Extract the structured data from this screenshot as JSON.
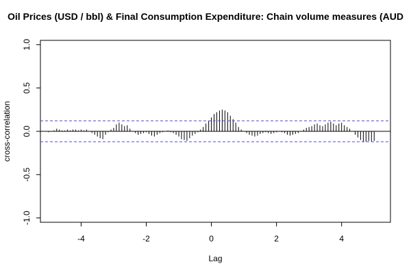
{
  "chart_data": {
    "type": "bar",
    "title": "Oil Prices (USD / bbl) & Final Consumption Expenditure: Chain volume measures (AUD",
    "xlabel": "Lag",
    "ylabel": "cross-correlation",
    "xlim": [
      -5.25,
      5.5
    ],
    "ylim": [
      -1.05,
      1.05
    ],
    "x_ticks": [
      -4,
      -2,
      0,
      2,
      4
    ],
    "y_ticks": [
      -1.0,
      -0.5,
      0.0,
      0.5,
      1.0
    ],
    "x_tick_labels": [
      "-4",
      "-2",
      "0",
      "2",
      "4"
    ],
    "y_tick_labels": [
      "-1.0",
      "-0.5",
      "0.0",
      "0.5",
      "1.0"
    ],
    "confidence_bound": 0.12,
    "colors": {
      "bars": "#000000",
      "confidence_lines": "#4a4adf",
      "zero_line": "#000000"
    },
    "lags": [
      -5.0,
      -4.917,
      -4.833,
      -4.75,
      -4.667,
      -4.583,
      -4.5,
      -4.417,
      -4.333,
      -4.25,
      -4.167,
      -4.083,
      -4.0,
      -3.917,
      -3.833,
      -3.75,
      -3.667,
      -3.583,
      -3.5,
      -3.417,
      -3.333,
      -3.25,
      -3.167,
      -3.083,
      -3.0,
      -2.917,
      -2.833,
      -2.75,
      -2.667,
      -2.583,
      -2.5,
      -2.417,
      -2.333,
      -2.25,
      -2.167,
      -2.083,
      -2.0,
      -1.917,
      -1.833,
      -1.75,
      -1.667,
      -1.583,
      -1.5,
      -1.417,
      -1.333,
      -1.25,
      -1.167,
      -1.083,
      -1.0,
      -0.917,
      -0.833,
      -0.75,
      -0.667,
      -0.583,
      -0.5,
      -0.417,
      -0.333,
      -0.25,
      -0.167,
      -0.083,
      0.0,
      0.083,
      0.167,
      0.25,
      0.333,
      0.417,
      0.5,
      0.583,
      0.667,
      0.75,
      0.833,
      0.917,
      1.0,
      1.083,
      1.167,
      1.25,
      1.333,
      1.417,
      1.5,
      1.583,
      1.667,
      1.75,
      1.833,
      1.917,
      2.0,
      2.083,
      2.167,
      2.25,
      2.333,
      2.417,
      2.5,
      2.583,
      2.667,
      2.75,
      2.833,
      2.917,
      3.0,
      3.083,
      3.167,
      3.25,
      3.333,
      3.417,
      3.5,
      3.583,
      3.667,
      3.75,
      3.833,
      3.917,
      4.0,
      4.083,
      4.167,
      4.25,
      4.333,
      4.417,
      4.5,
      4.583,
      4.667,
      4.75,
      4.833,
      4.917,
      5.0
    ],
    "values": [
      -0.01,
      0.0,
      0.01,
      0.03,
      0.02,
      0.01,
      0.01,
      0.02,
      0.01,
      0.02,
      0.02,
      0.01,
      0.02,
      0.01,
      0.02,
      0.0,
      -0.02,
      -0.04,
      -0.06,
      -0.08,
      -0.09,
      -0.04,
      -0.01,
      0.02,
      0.04,
      0.08,
      0.1,
      0.08,
      0.06,
      0.07,
      0.03,
      0.0,
      -0.02,
      -0.04,
      -0.03,
      -0.02,
      -0.01,
      -0.03,
      -0.05,
      -0.06,
      -0.04,
      -0.02,
      -0.01,
      0.0,
      0.01,
      -0.01,
      -0.02,
      -0.04,
      -0.06,
      -0.09,
      -0.1,
      -0.11,
      -0.08,
      -0.05,
      -0.03,
      -0.01,
      0.02,
      0.05,
      0.09,
      0.12,
      0.16,
      0.2,
      0.22,
      0.24,
      0.25,
      0.24,
      0.22,
      0.18,
      0.14,
      0.1,
      0.05,
      0.02,
      0.0,
      -0.02,
      -0.04,
      -0.05,
      -0.06,
      -0.05,
      -0.03,
      -0.02,
      -0.01,
      -0.02,
      -0.03,
      -0.02,
      -0.01,
      0.0,
      -0.01,
      -0.02,
      -0.04,
      -0.05,
      -0.04,
      -0.03,
      -0.02,
      0.0,
      0.02,
      0.04,
      0.05,
      0.06,
      0.08,
      0.09,
      0.07,
      0.06,
      0.08,
      0.1,
      0.11,
      0.09,
      0.07,
      0.09,
      0.1,
      0.07,
      0.05,
      0.03,
      0.0,
      -0.04,
      -0.07,
      -0.1,
      -0.12,
      -0.12,
      -0.11,
      -0.12,
      -0.11
    ]
  }
}
